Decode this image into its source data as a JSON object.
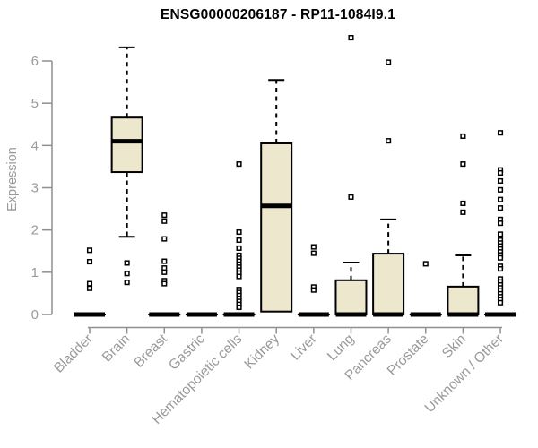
{
  "chart_data": {
    "type": "boxplot",
    "title": "ENSG00000206187 - RP11-1084I9.1",
    "ylabel": "Expression",
    "ylim": [
      0,
      6
    ],
    "yticks": [
      0,
      1,
      2,
      3,
      4,
      5,
      6
    ],
    "grid": false,
    "legend": "none",
    "categories": [
      "Bladder",
      "Brain",
      "Breast",
      "Gastric",
      "Hematopoietic cells",
      "Kidney",
      "Liver",
      "Lung",
      "Pancreas",
      "Prostate",
      "Skin",
      "Unknown / Other"
    ],
    "series": [
      {
        "category": "Bladder",
        "whisker_low": 0,
        "q1": 0,
        "median": 0,
        "q3": 0,
        "whisker_high": 0,
        "outliers": [
          1.52,
          1.25,
          0.73,
          0.62
        ]
      },
      {
        "category": "Brain",
        "whisker_low": 1.84,
        "q1": 3.37,
        "median": 4.1,
        "q3": 4.66,
        "whisker_high": 6.32,
        "outliers": [
          1.22,
          0.97,
          0.76
        ]
      },
      {
        "category": "Breast",
        "whisker_low": 0,
        "q1": 0,
        "median": 0,
        "q3": 0,
        "whisker_high": 0,
        "outliers": [
          2.35,
          2.21,
          1.79,
          1.26,
          1.1,
          1.0,
          0.8,
          0.73
        ]
      },
      {
        "category": "Gastric",
        "whisker_low": 0,
        "q1": 0,
        "median": 0,
        "q3": 0,
        "whisker_high": 0,
        "outliers": []
      },
      {
        "category": "Hematopoietic cells",
        "whisker_low": 0,
        "q1": 0,
        "median": 0,
        "q3": 0,
        "whisker_high": 0,
        "outliers": [
          3.56,
          1.95,
          1.76,
          1.57,
          1.4,
          1.33,
          1.26,
          1.19,
          1.12,
          1.05,
          0.98,
          0.9,
          0.59,
          0.52,
          0.45,
          0.38,
          0.31,
          0.24,
          0.17
        ]
      },
      {
        "category": "Kidney",
        "whisker_low": 0.07,
        "q1": 0.07,
        "median": 2.57,
        "q3": 4.05,
        "whisker_high": 5.55,
        "outliers": []
      },
      {
        "category": "Liver",
        "whisker_low": 0,
        "q1": 0,
        "median": 0,
        "q3": 0,
        "whisker_high": 0,
        "outliers": [
          1.6,
          1.45,
          0.65,
          0.58
        ]
      },
      {
        "category": "Lung",
        "whisker_low": 0,
        "q1": 0,
        "median": 0,
        "q3": 0.81,
        "whisker_high": 1.23,
        "outliers": [
          6.55,
          2.78
        ]
      },
      {
        "category": "Pancreas",
        "whisker_low": 0,
        "q1": 0,
        "median": 0,
        "q3": 1.44,
        "whisker_high": 2.25,
        "outliers": [
          5.97,
          4.11
        ]
      },
      {
        "category": "Prostate",
        "whisker_low": 0,
        "q1": 0,
        "median": 0,
        "q3": 0,
        "whisker_high": 0,
        "outliers": [
          1.2
        ]
      },
      {
        "category": "Skin",
        "whisker_low": 0,
        "q1": 0,
        "median": 0,
        "q3": 0.66,
        "whisker_high": 1.4,
        "outliers": [
          4.22,
          3.56,
          2.63,
          2.42
        ]
      },
      {
        "category": "Unknown / Other",
        "whisker_low": 0,
        "q1": 0,
        "median": 0,
        "q3": 0,
        "whisker_high": 0,
        "outliers": [
          4.3,
          3.42,
          3.35,
          3.16,
          2.95,
          2.72,
          2.52,
          2.25,
          2.16,
          1.9,
          1.76,
          1.69,
          1.62,
          1.55,
          1.48,
          1.41,
          1.34,
          1.14,
          1.08,
          0.84,
          0.77,
          0.7,
          0.63,
          0.56,
          0.49,
          0.42,
          0.35,
          0.28
        ]
      }
    ],
    "style": {
      "box_fill": "#ede7cd",
      "box_stroke": "#000000",
      "median_color": "#000000",
      "whisker_color": "#000000",
      "outlier_fill": "#ffffff",
      "outlier_stroke": "#000000",
      "axis_color": "#8f8f8f",
      "label_color": "#9a9a9a",
      "title_color": "#000000",
      "background": "#ffffff"
    }
  }
}
